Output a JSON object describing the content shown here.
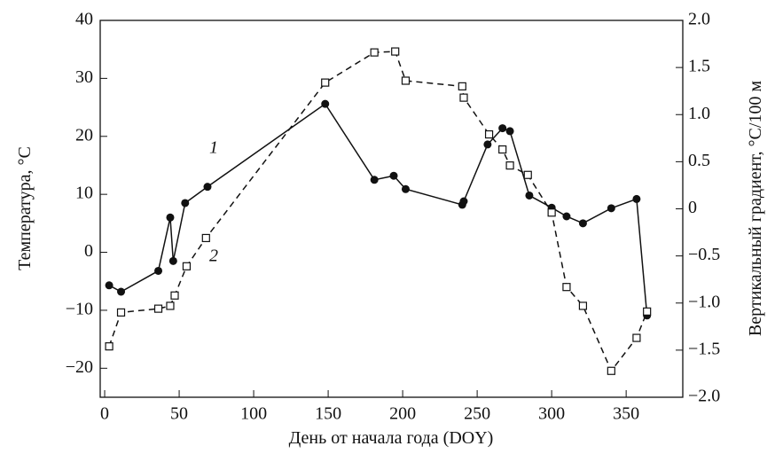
{
  "chart_data": {
    "type": "line",
    "x_label": "День от начала года (DOY)",
    "y_label": "Температура, °C",
    "y2_label": "Вертикальный градиент, °C/100 м",
    "annotations": [
      "1",
      "2"
    ],
    "xlim": [
      -3,
      388
    ],
    "xticks": [
      0,
      50,
      100,
      150,
      200,
      250,
      300,
      350
    ],
    "ylim": [
      -25,
      40
    ],
    "yticks": [
      {
        "value": -20,
        "label": "−20"
      },
      {
        "value": -10,
        "label": "−10"
      },
      0,
      10,
      20,
      30,
      40
    ],
    "y2lim": [
      -2,
      2
    ],
    "y2ticks": [
      {
        "value": -2,
        "label": "−2.0"
      },
      {
        "value": -1.5,
        "label": "−1.5"
      },
      {
        "value": -1,
        "label": "−1.0"
      },
      {
        "value": -0.5,
        "label": "−0.5"
      },
      0,
      0.5,
      {
        "value": 1,
        "label": "1.0"
      },
      1.5,
      {
        "value": 2,
        "label": "2.0"
      }
    ],
    "series": [
      {
        "color": "#111111",
        "marker": "circle",
        "dash": false,
        "x": [
          3,
          11,
          36,
          44,
          46,
          54,
          69,
          148,
          181,
          194,
          202,
          240,
          241,
          257,
          267,
          272,
          285,
          300,
          310,
          321,
          340,
          357,
          364
        ],
        "values": [
          -5.7,
          -6.8,
          -3.2,
          6,
          -1.5,
          8.5,
          11.3,
          25.6,
          12.5,
          13.2,
          10.9,
          8.2,
          8.8,
          18.6,
          21.4,
          20.9,
          9.8,
          7.7,
          6.2,
          5.0,
          7.6,
          9.2,
          -10.9
        ]
      },
      {
        "color": "#111111",
        "marker": "square",
        "dash": true,
        "axis": "y2",
        "x": [
          3,
          11,
          36,
          44,
          47,
          55,
          68,
          148,
          181,
          195,
          202,
          240,
          241,
          258,
          267,
          272,
          284,
          300,
          310,
          321,
          340,
          357,
          364
        ],
        "values": [
          -1.46,
          -1.1,
          -1.06,
          -1.03,
          -0.92,
          -0.61,
          -0.31,
          1.34,
          1.66,
          1.67,
          1.36,
          1.3,
          1.18,
          0.79,
          0.63,
          0.46,
          0.36,
          -0.04,
          -0.83,
          -1.03,
          -1.72,
          -1.37,
          -1.09
        ]
      }
    ]
  }
}
